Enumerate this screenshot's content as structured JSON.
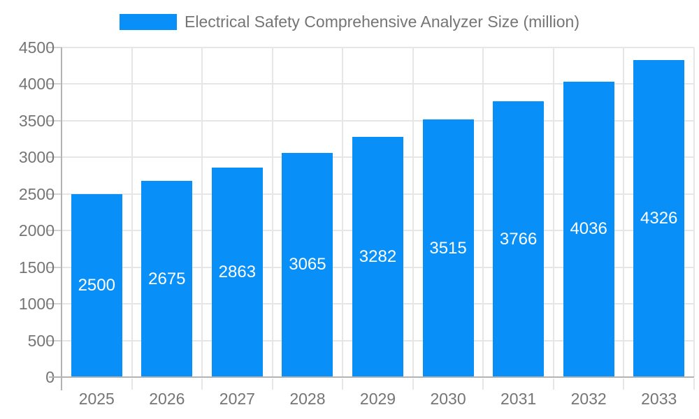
{
  "chart_data": {
    "type": "bar",
    "title": "Electrical Safety Comprehensive Analyzer Size (million)",
    "categories": [
      "2025",
      "2026",
      "2027",
      "2028",
      "2029",
      "2030",
      "2031",
      "2032",
      "2033"
    ],
    "values": [
      2500,
      2675,
      2863,
      3065,
      3282,
      3515,
      3766,
      4036,
      4326
    ],
    "series_name": "Electrical Safety Comprehensive Analyzer Size (million)",
    "xlabel": "",
    "ylabel": "",
    "ylim": [
      0,
      4500
    ],
    "y_ticks": [
      0,
      500,
      1000,
      1500,
      2000,
      2500,
      3000,
      3500,
      4000,
      4500
    ],
    "grid": true,
    "legend_position": "top-center",
    "bar_labels_inside": true,
    "colors": {
      "bar": "#0890f8",
      "text": "#757575",
      "grid": "#e6e6e6",
      "axis": "#b3b3b3",
      "bar_label": "#ffffff",
      "background": "#ffffff"
    }
  }
}
